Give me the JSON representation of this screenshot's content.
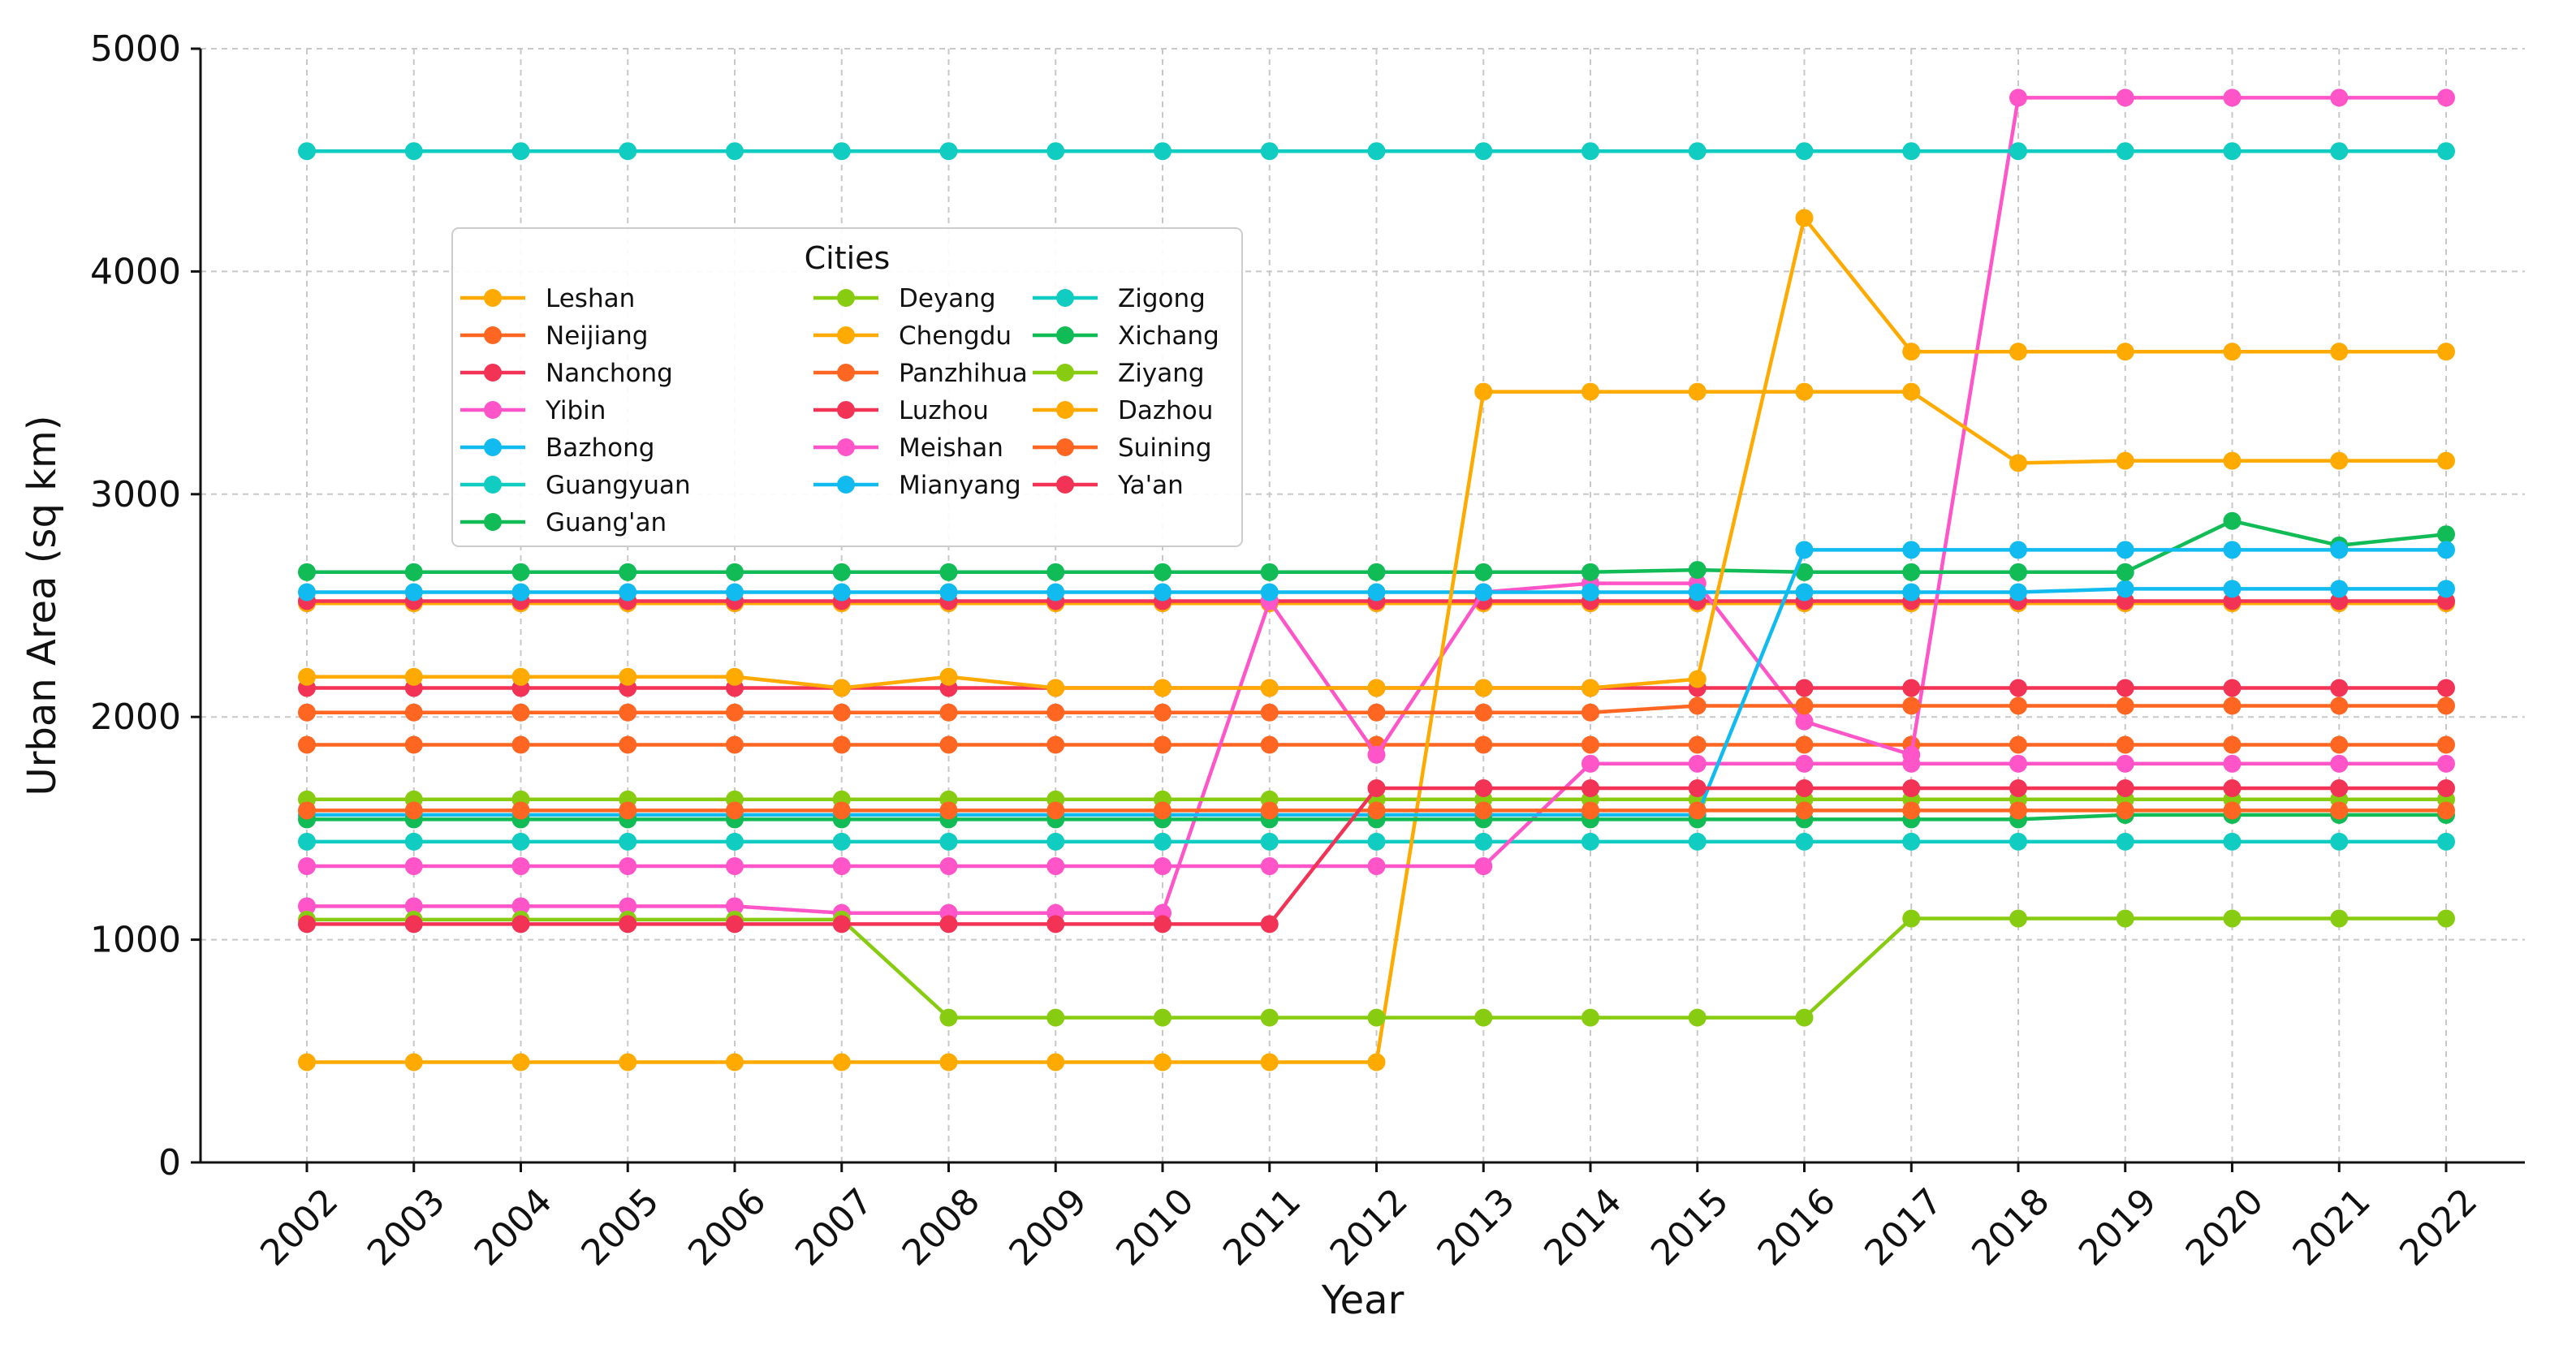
{
  "chart_data": {
    "type": "line",
    "title": "",
    "xlabel": "Year",
    "ylabel": "Urban Area (sq km)",
    "ylim": [
      0,
      5000
    ],
    "yticks": [
      0,
      1000,
      2000,
      3000,
      4000,
      5000
    ],
    "grid": true,
    "legend_title": "Cities",
    "legend_location": "upper-left",
    "categories": [
      "2002",
      "2003",
      "2004",
      "2005",
      "2006",
      "2007",
      "2008",
      "2009",
      "2010",
      "2011",
      "2012",
      "2013",
      "2014",
      "2015",
      "2016",
      "2017",
      "2018",
      "2019",
      "2020",
      "2021",
      "2022"
    ],
    "series": [
      {
        "name": "Leshan",
        "color": "#FFAA00",
        "values": [
          2510,
          2510,
          2510,
          2510,
          2510,
          2510,
          2510,
          2510,
          2510,
          2510,
          2510,
          2510,
          2510,
          2510,
          2510,
          2510,
          2510,
          2510,
          2510,
          2510,
          2510
        ]
      },
      {
        "name": "Neijiang",
        "color": "#FF6622",
        "values": [
          1875,
          1875,
          1875,
          1875,
          1875,
          1875,
          1875,
          1875,
          1875,
          1875,
          1875,
          1875,
          1875,
          1875,
          1875,
          1875,
          1875,
          1875,
          1875,
          1875,
          1875
        ]
      },
      {
        "name": "Nanchong",
        "color": "#F23355",
        "values": [
          2520,
          2520,
          2520,
          2520,
          2520,
          2520,
          2520,
          2520,
          2520,
          2520,
          2520,
          2520,
          2520,
          2520,
          2520,
          2520,
          2520,
          2520,
          2520,
          2520,
          2520
        ]
      },
      {
        "name": "Yibin",
        "color": "#FF55C8",
        "values": [
          1150,
          1150,
          1150,
          1150,
          1150,
          1120,
          1120,
          1120,
          1120,
          2520,
          1830,
          2560,
          2600,
          2600,
          1980,
          1830,
          4780,
          4780,
          4780,
          4780,
          4780
        ]
      },
      {
        "name": "Bazhong",
        "color": "#11BBF0",
        "values": [
          2560,
          2560,
          2560,
          2560,
          2560,
          2560,
          2560,
          2560,
          2560,
          2560,
          2560,
          2560,
          2560,
          2560,
          2560,
          2560,
          2560,
          2575,
          2575,
          2575,
          2575
        ]
      },
      {
        "name": "Guangyuan",
        "color": "#11CCC0",
        "values": [
          1440,
          1440,
          1440,
          1440,
          1440,
          1440,
          1440,
          1440,
          1440,
          1440,
          1440,
          1440,
          1440,
          1440,
          1440,
          1440,
          1440,
          1440,
          1440,
          1440,
          1440
        ]
      },
      {
        "name": "Guang'an",
        "color": "#11BB55",
        "values": [
          2650,
          2650,
          2650,
          2650,
          2650,
          2650,
          2650,
          2650,
          2650,
          2650,
          2650,
          2650,
          2650,
          2660,
          2650,
          2650,
          2650,
          2650,
          2880,
          2770,
          2820
        ]
      },
      {
        "name": "Deyang",
        "color": "#88CC11",
        "values": [
          1630,
          1630,
          1630,
          1630,
          1630,
          1630,
          1630,
          1630,
          1630,
          1630,
          1630,
          1630,
          1630,
          1630,
          1630,
          1630,
          1630,
          1630,
          1630,
          1630,
          1630
        ]
      },
      {
        "name": "Chengdu",
        "color": "#FFAA00",
        "values": [
          450,
          450,
          450,
          450,
          450,
          450,
          450,
          450,
          450,
          450,
          450,
          3460,
          3460,
          3460,
          3460,
          3460,
          3140,
          3150,
          3150,
          3150,
          3150
        ]
      },
      {
        "name": "Panzhihua",
        "color": "#FF6622",
        "values": [
          2020,
          2020,
          2020,
          2020,
          2020,
          2020,
          2020,
          2020,
          2020,
          2020,
          2020,
          2020,
          2020,
          2050,
          2050,
          2050,
          2050,
          2050,
          2050,
          2050,
          2050
        ]
      },
      {
        "name": "Luzhou",
        "color": "#F23355",
        "values": [
          2130,
          2130,
          2130,
          2130,
          2130,
          2130,
          2130,
          2130,
          2130,
          2130,
          2130,
          2130,
          2130,
          2130,
          2130,
          2130,
          2130,
          2130,
          2130,
          2130,
          2130
        ]
      },
      {
        "name": "Meishan",
        "color": "#FF55C8",
        "values": [
          1330,
          1330,
          1330,
          1330,
          1330,
          1330,
          1330,
          1330,
          1330,
          1330,
          1330,
          1330,
          1790,
          1790,
          1790,
          1790,
          1790,
          1790,
          1790,
          1790,
          1790
        ]
      },
      {
        "name": "Mianyang",
        "color": "#11BBF0",
        "values": [
          1560,
          1560,
          1560,
          1560,
          1560,
          1560,
          1560,
          1560,
          1560,
          1560,
          1560,
          1560,
          1560,
          1560,
          2750,
          2750,
          2750,
          2750,
          2750,
          2750,
          2750
        ]
      },
      {
        "name": "Zigong",
        "color": "#11CCC0",
        "values": [
          4540,
          4540,
          4540,
          4540,
          4540,
          4540,
          4540,
          4540,
          4540,
          4540,
          4540,
          4540,
          4540,
          4540,
          4540,
          4540,
          4540,
          4540,
          4540,
          4540,
          4540
        ]
      },
      {
        "name": "Xichang",
        "color": "#11BB55",
        "values": [
          1540,
          1540,
          1540,
          1540,
          1540,
          1540,
          1540,
          1540,
          1540,
          1540,
          1540,
          1540,
          1540,
          1540,
          1540,
          1540,
          1540,
          1560,
          1560,
          1560,
          1560
        ]
      },
      {
        "name": "Ziyang",
        "color": "#88CC11",
        "values": [
          1090,
          1090,
          1090,
          1090,
          1090,
          1090,
          650,
          650,
          650,
          650,
          650,
          650,
          650,
          650,
          650,
          1095,
          1095,
          1095,
          1095,
          1095,
          1095
        ]
      },
      {
        "name": "Dazhou",
        "color": "#FFAA00",
        "values": [
          2180,
          2180,
          2180,
          2180,
          2180,
          2130,
          2180,
          2130,
          2130,
          2130,
          2130,
          2130,
          2130,
          2170,
          4240,
          3640,
          3640,
          3640,
          3640,
          3640,
          3640
        ]
      },
      {
        "name": "Suining",
        "color": "#FF6622",
        "values": [
          1580,
          1580,
          1580,
          1580,
          1580,
          1580,
          1580,
          1580,
          1580,
          1580,
          1580,
          1580,
          1580,
          1580,
          1580,
          1580,
          1580,
          1580,
          1580,
          1580,
          1580
        ]
      },
      {
        "name": "Ya'an",
        "color": "#F23355",
        "values": [
          1070,
          1070,
          1070,
          1070,
          1070,
          1070,
          1070,
          1070,
          1070,
          1070,
          1680,
          1680,
          1680,
          1680,
          1680,
          1680,
          1680,
          1680,
          1680,
          1680,
          1680
        ]
      }
    ]
  }
}
